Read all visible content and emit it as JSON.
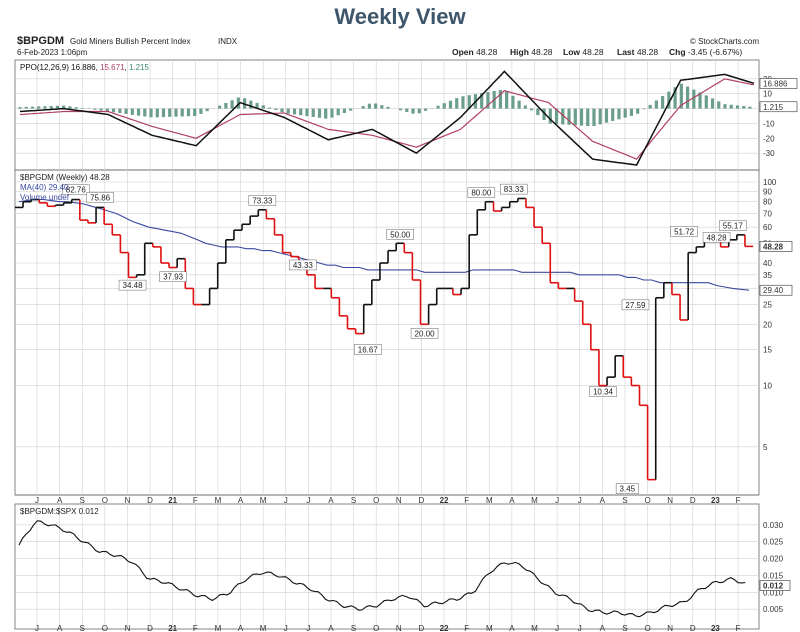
{
  "page_title": "Weekly View",
  "header": {
    "symbol": "$BPGDM",
    "description": "Gold Miners Bullish Percent Index",
    "exchange": "INDX",
    "date": "6-Feb-2023 1:06pm",
    "source": "© StockCharts.com",
    "ohlc": [
      {
        "label": "Open",
        "value": "48.28"
      },
      {
        "label": "High",
        "value": "48.28"
      },
      {
        "label": "Low",
        "value": "48.28"
      },
      {
        "label": "Last",
        "value": "48.28"
      },
      {
        "label": "Chg",
        "value": "-3.45 (-6.67%)"
      }
    ]
  },
  "colors": {
    "up": "#111111",
    "down": "#e01010",
    "ma": "#3a4aa0",
    "ppo_line": "#111111",
    "ppo_signal": "#b04060",
    "histogram": "#6a9e8a",
    "ratio_line": "#111111",
    "grid": "#d0d0d0"
  },
  "chart_data": [
    {
      "type": "line",
      "panel": "ppo",
      "legend": "PPO(12,26,9) 16.886, 15.671, 1.215",
      "legend_parts": [
        {
          "text": "PPO(12,26,9) ",
          "color": "#111111"
        },
        {
          "text": "16.886",
          "color": "#111111"
        },
        {
          "text": ", ",
          "color": "#111111"
        },
        {
          "text": "15.671",
          "color": "#b04060"
        },
        {
          "text": ", ",
          "color": "#111111"
        },
        {
          "text": "1.215",
          "color": "#3a8a6a"
        }
      ],
      "ylim": [
        -40,
        30
      ],
      "yticks": [
        "20",
        "10",
        "0",
        "-10",
        "-20",
        "-30"
      ],
      "badges": [
        "16.886",
        "1.215"
      ],
      "x": [
        0,
        6,
        12,
        18,
        24,
        30,
        36,
        42,
        48,
        54,
        60,
        66,
        72,
        78,
        84,
        90,
        96,
        100
      ],
      "series": [
        {
          "name": "PPO",
          "values": [
            -2,
            0,
            -4,
            -18,
            -25,
            4,
            -6,
            -21,
            -14,
            -30,
            -6,
            25,
            -6,
            -34,
            -38,
            19,
            23,
            17
          ]
        },
        {
          "name": "Signal",
          "values": [
            -4,
            -2,
            -2,
            -12,
            -20,
            -4,
            -3,
            -14,
            -18,
            -26,
            -14,
            12,
            4,
            -22,
            -34,
            2,
            20,
            16
          ]
        },
        {
          "name": "Histogram",
          "values": [
            1,
            2,
            -2,
            -6,
            -5,
            8,
            -3,
            -7,
            4,
            -4,
            8,
            13,
            -10,
            -12,
            -4,
            17,
            3,
            1
          ]
        }
      ]
    },
    {
      "type": "line",
      "panel": "price",
      "legend_price": "$BPGDM (Weekly) 48.28",
      "legend_ma": "MA(40) 29.40",
      "legend_vol": "Volume undef",
      "scale": "log",
      "ylim": [
        3,
        100
      ],
      "yticks": [
        "100",
        "90",
        "80",
        "70",
        "60",
        "50",
        "40",
        "35",
        "30",
        "25",
        "20",
        "15",
        "10",
        "5"
      ],
      "badges": [
        "48.28",
        "29.40"
      ],
      "annotations": [
        {
          "text": "82.76",
          "x": 7,
          "y": 82.76
        },
        {
          "text": "75.86",
          "x": 10,
          "y": 75.86
        },
        {
          "text": "34.48",
          "x": 14,
          "y": 34.48
        },
        {
          "text": "37.93",
          "x": 19,
          "y": 37.93
        },
        {
          "text": "73.33",
          "x": 30,
          "y": 73.33
        },
        {
          "text": "43.33",
          "x": 35,
          "y": 43.33
        },
        {
          "text": "16.67",
          "x": 43,
          "y": 16.67
        },
        {
          "text": "50.00",
          "x": 47,
          "y": 50.0
        },
        {
          "text": "20.00",
          "x": 50,
          "y": 20.0
        },
        {
          "text": "80.00",
          "x": 57,
          "y": 80.0
        },
        {
          "text": "83.33",
          "x": 61,
          "y": 83.33
        },
        {
          "text": "10.34",
          "x": 72,
          "y": 10.34
        },
        {
          "text": "3.45",
          "x": 75,
          "y": 3.45
        },
        {
          "text": "27.59",
          "x": 76,
          "y": 27.59
        },
        {
          "text": "51.72",
          "x": 82,
          "y": 51.72
        },
        {
          "text": "48.28",
          "x": 86,
          "y": 48.28
        },
        {
          "text": "55.17",
          "x": 88,
          "y": 55.17
        }
      ],
      "x": [
        0,
        1,
        2,
        3,
        4,
        5,
        6,
        7,
        8,
        9,
        10,
        11,
        12,
        13,
        14,
        15,
        16,
        17,
        18,
        19,
        20,
        21,
        22,
        23,
        24,
        25,
        26,
        27,
        28,
        29,
        30,
        31,
        32,
        33,
        34,
        35,
        36,
        37,
        38,
        39,
        40,
        41,
        42,
        43,
        44,
        45,
        46,
        47,
        48,
        49,
        50,
        51,
        52,
        53,
        54,
        55,
        56,
        57,
        58,
        59,
        60,
        61,
        62,
        63,
        64,
        65,
        66,
        67,
        68,
        69,
        70,
        71,
        72,
        73,
        74,
        75,
        76,
        77,
        78,
        79,
        80,
        81,
        82,
        83,
        84,
        85,
        86,
        87,
        88,
        89,
        90
      ],
      "series": [
        {
          "name": "$BPGDM",
          "values": [
            75,
            80,
            82,
            79,
            76,
            77,
            79,
            82,
            65,
            63,
            75,
            62,
            55,
            45,
            34,
            35,
            50,
            48,
            40,
            38,
            42,
            30,
            25,
            25,
            30,
            40,
            52,
            58,
            62,
            68,
            73,
            66,
            55,
            45,
            43,
            40,
            35,
            30,
            30,
            27,
            22,
            19,
            18,
            25,
            33,
            40,
            46,
            50,
            45,
            33,
            20,
            25,
            30,
            30,
            28,
            30,
            55,
            73,
            80,
            72,
            75,
            80,
            83,
            75,
            60,
            50,
            32,
            30,
            30,
            26,
            20,
            15,
            10,
            11,
            14,
            11,
            10,
            8,
            3.45,
            27,
            32,
            28,
            21,
            45,
            48,
            52,
            51,
            48,
            52,
            55,
            48.28
          ]
        },
        {
          "name": "MA(40)",
          "values": [
            80,
            81,
            82,
            82,
            81,
            80,
            80,
            79,
            78,
            76,
            74,
            72,
            70,
            67,
            64,
            62,
            60,
            59,
            58,
            57,
            56,
            54,
            52,
            50,
            49,
            48,
            48,
            48,
            47,
            47,
            46,
            46,
            45,
            44,
            43,
            42,
            41,
            40,
            39,
            39,
            38,
            38,
            38,
            37,
            37,
            37,
            37,
            37,
            37,
            37,
            36,
            36,
            36,
            36,
            36,
            36,
            37,
            37,
            37,
            37,
            37,
            37,
            36,
            36,
            36,
            36,
            36,
            36,
            36,
            35,
            35,
            35,
            35,
            35,
            35,
            34,
            34,
            33,
            33,
            32,
            32,
            32,
            32,
            32,
            32,
            32,
            31,
            30.5,
            30,
            29.7,
            29.4
          ]
        }
      ]
    },
    {
      "type": "line",
      "panel": "ratio",
      "legend": "$BPGDM:$SPX 0.012",
      "ylim": [
        0,
        0.035
      ],
      "yticks": [
        "0.030",
        "0.025",
        "0.020",
        "0.015",
        "0.010",
        "0.005"
      ],
      "badges": [
        "0.012"
      ],
      "x": [
        0,
        2,
        4,
        6,
        8,
        10,
        12,
        14,
        16,
        18,
        20,
        22,
        24,
        26,
        28,
        30,
        32,
        34,
        36,
        38,
        40,
        42,
        44,
        46,
        48,
        50,
        52,
        54,
        56,
        58,
        60,
        62,
        64,
        66,
        68,
        70,
        72,
        74,
        76,
        78,
        80,
        82,
        84,
        86,
        88,
        90
      ],
      "series": [
        {
          "name": "$BPGDM:$SPX",
          "values": [
            0.024,
            0.031,
            0.03,
            0.028,
            0.025,
            0.022,
            0.021,
            0.019,
            0.014,
            0.013,
            0.011,
            0.009,
            0.008,
            0.01,
            0.014,
            0.016,
            0.015,
            0.013,
            0.011,
            0.008,
            0.006,
            0.005,
            0.006,
            0.008,
            0.009,
            0.006,
            0.007,
            0.008,
            0.01,
            0.016,
            0.019,
            0.018,
            0.014,
            0.01,
            0.008,
            0.005,
            0.004,
            0.004,
            0.003,
            0.004,
            0.006,
            0.007,
            0.011,
            0.013,
            0.014,
            0.012
          ]
        }
      ]
    }
  ],
  "x_axis": {
    "labels": [
      "J",
      "A",
      "S",
      "O",
      "N",
      "D",
      "21",
      "F",
      "M",
      "A",
      "M",
      "J",
      "J",
      "A",
      "S",
      "O",
      "N",
      "D",
      "22",
      "F",
      "M",
      "A",
      "M",
      "J",
      "J",
      "A",
      "S",
      "O",
      "N",
      "D",
      "23",
      "F"
    ],
    "bold": [
      "21",
      "22",
      "23"
    ]
  }
}
